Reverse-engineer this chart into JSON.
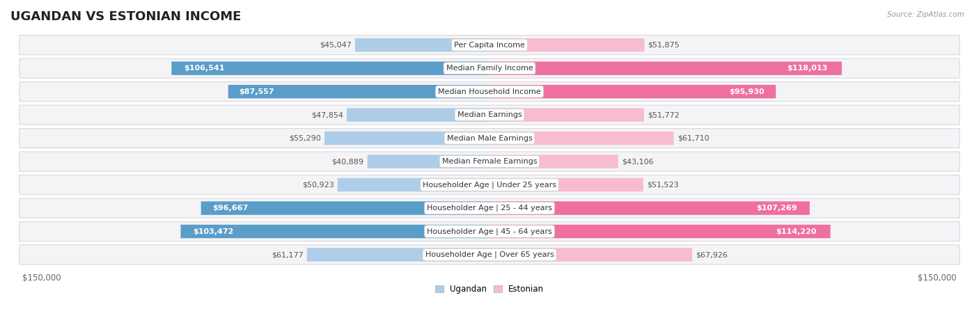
{
  "title": "UGANDAN VS ESTONIAN INCOME",
  "source": "Source: ZipAtlas.com",
  "categories": [
    "Per Capita Income",
    "Median Family Income",
    "Median Household Income",
    "Median Earnings",
    "Median Male Earnings",
    "Median Female Earnings",
    "Householder Age | Under 25 years",
    "Householder Age | 25 - 44 years",
    "Householder Age | 45 - 64 years",
    "Householder Age | Over 65 years"
  ],
  "ugandan_values": [
    45047,
    106541,
    87557,
    47854,
    55290,
    40889,
    50923,
    96667,
    103472,
    61177
  ],
  "estonian_values": [
    51875,
    118013,
    95930,
    51772,
    61710,
    43106,
    51523,
    107269,
    114220,
    67926
  ],
  "ugandan_color_light": "#aecde8",
  "ugandan_color_dark": "#5b9dc9",
  "estonian_color_light": "#f7bcd0",
  "estonian_color_dark": "#ee6fa0",
  "ugandan_label_color_threshold": 80000,
  "estonian_label_color_threshold": 80000,
  "max_value": 150000,
  "legend_ugandan": "Ugandan",
  "legend_estonian": "Estonian",
  "bar_height": 0.58,
  "row_facecolor": "#f4f4f6",
  "row_edgecolor": "#d8d8de",
  "background_color": "#ffffff",
  "title_fontsize": 13,
  "value_fontsize": 8,
  "axis_label_fontsize": 8.5,
  "category_fontsize": 8
}
